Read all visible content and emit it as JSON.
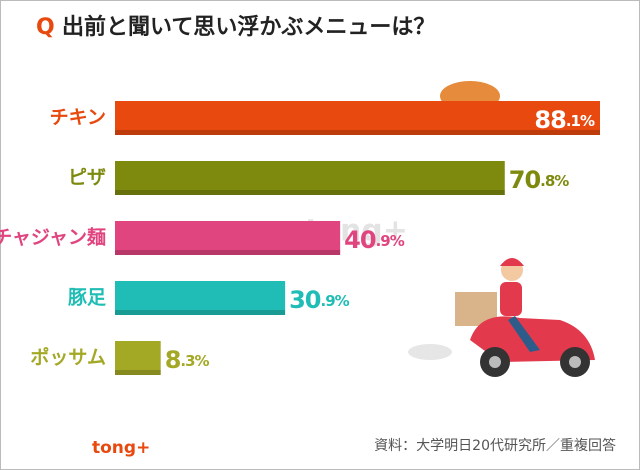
{
  "chart_data": {
    "type": "bar",
    "orientation": "horizontal",
    "title_prefix": "Q",
    "title": "出前と聞いて思い浮かぶメニューは？",
    "categories": [
      "チキン",
      "ピザ",
      "チャジャン麺",
      "豚足",
      "ポッサム"
    ],
    "values": [
      88.1,
      70.8,
      40.9,
      30.9,
      8.3
    ],
    "value_labels": [
      "88.1%",
      "70.8%",
      "40.9%",
      "30.9%",
      "8.3%"
    ],
    "colors": [
      "#e8490f",
      "#7e8a0e",
      "#e0457f",
      "#1fbdb5",
      "#a3a825"
    ],
    "source": "資料：大学明日20代研究所／重複回答",
    "logo": "tong+"
  }
}
